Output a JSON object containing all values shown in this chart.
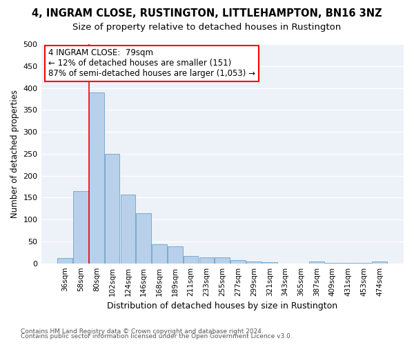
{
  "title1": "4, INGRAM CLOSE, RUSTINGTON, LITTLEHAMPTON, BN16 3NZ",
  "title2": "Size of property relative to detached houses in Rustington",
  "xlabel": "Distribution of detached houses by size in Rustington",
  "ylabel": "Number of detached properties",
  "categories": [
    "36sqm",
    "58sqm",
    "80sqm",
    "102sqm",
    "124sqm",
    "146sqm",
    "168sqm",
    "189sqm",
    "211sqm",
    "233sqm",
    "255sqm",
    "277sqm",
    "299sqm",
    "321sqm",
    "343sqm",
    "365sqm",
    "387sqm",
    "409sqm",
    "431sqm",
    "453sqm",
    "474sqm"
  ],
  "values": [
    12,
    165,
    390,
    250,
    157,
    115,
    44,
    39,
    17,
    14,
    13,
    8,
    5,
    3,
    0,
    0,
    4,
    1,
    1,
    1,
    5
  ],
  "bar_color": "#b8d0ea",
  "bar_edge_color": "#7aabcd",
  "annotation_line1": "4 INGRAM CLOSE:  79sqm",
  "annotation_line2": "← 12% of detached houses are smaller (151)",
  "annotation_line3": "87% of semi-detached houses are larger (1,053) →",
  "annotation_box_color": "white",
  "annotation_box_edge_color": "red",
  "vline_color": "red",
  "vline_x_index": 2,
  "ylim": [
    0,
    500
  ],
  "yticks": [
    0,
    50,
    100,
    150,
    200,
    250,
    300,
    350,
    400,
    450,
    500
  ],
  "background_color": "#edf2f9",
  "footer1": "Contains HM Land Registry data © Crown copyright and database right 2024.",
  "footer2": "Contains public sector information licensed under the Open Government Licence v3.0.",
  "title1_fontsize": 10.5,
  "title2_fontsize": 9.5,
  "xlabel_fontsize": 9,
  "ylabel_fontsize": 8.5,
  "tick_fontsize": 8,
  "annotation_fontsize": 8.5,
  "footer_fontsize": 6.5
}
